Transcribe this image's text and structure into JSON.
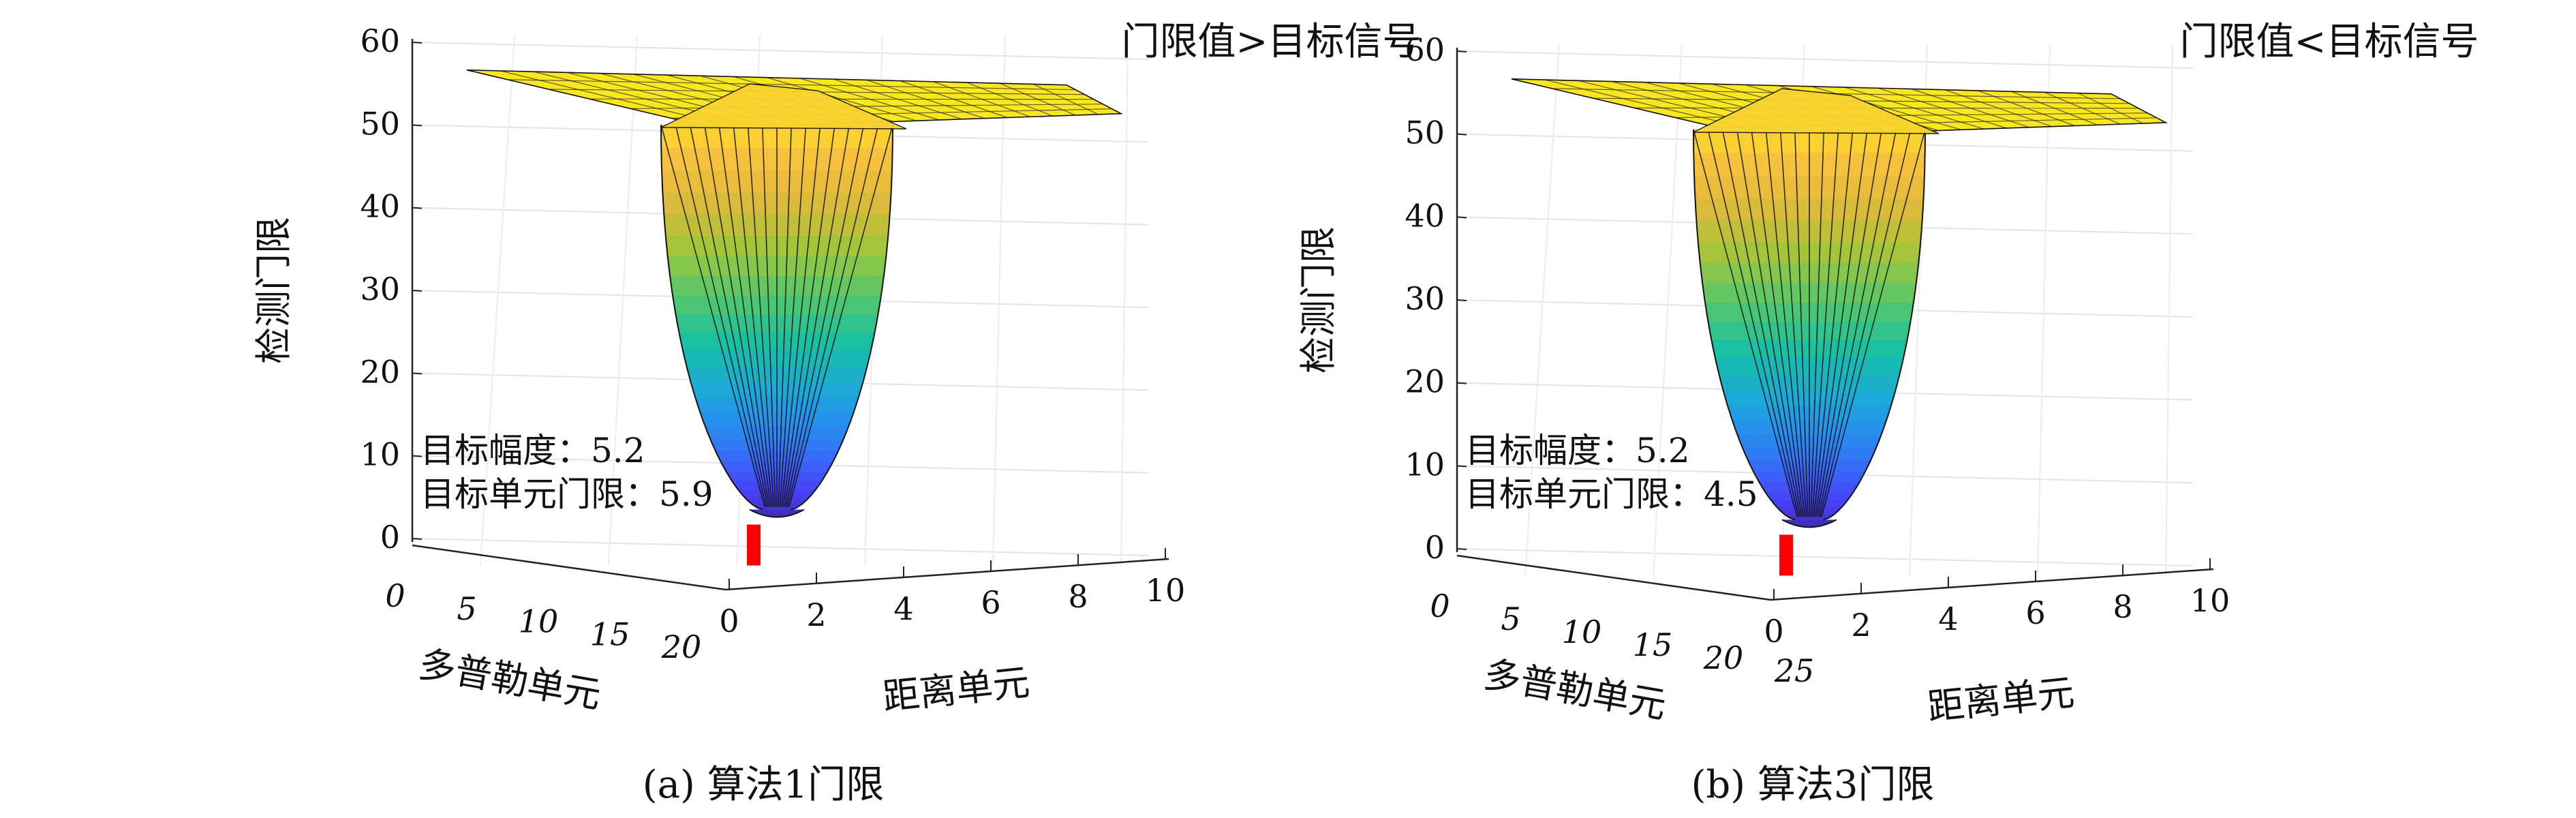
{
  "palette": [
    "#3e26a8",
    "#4743f8",
    "#2f7ef8",
    "#1da8dc",
    "#16bfa6",
    "#55c86a",
    "#a5c43a",
    "#e2b83a",
    "#fbc33c",
    "#f9fb0e"
  ],
  "surface_edge_color": "#111111",
  "target_marker_color": "#ff0000",
  "charts": [
    {
      "caption": "(a) 算法1门限",
      "annotation_top": "门限值>目标信号",
      "annotation_lines": [
        "目标幅度：5.2",
        "目标单元门限：5.9"
      ],
      "chart_data": {
        "type": "surface",
        "xlabel": "距离单元",
        "ylabel": "多普勒单元",
        "zlabel": "检测门限",
        "x_ticks": [
          "0",
          "2",
          "4",
          "6",
          "8",
          "10"
        ],
        "y_ticks": [
          "0",
          "5",
          "10",
          "15",
          "20"
        ],
        "z_ticks": [
          "0",
          "10",
          "20",
          "30",
          "40",
          "50",
          "60"
        ],
        "xlim": [
          0,
          10
        ],
        "ylim": [
          0,
          20
        ],
        "zlim": [
          0,
          60
        ],
        "plateau_value": 55,
        "threshold_min": 3.5,
        "target_cell": {
          "range": 2,
          "doppler": 0
        },
        "target_amplitude": 5.2,
        "target_threshold": 5.9,
        "grid": true
      }
    },
    {
      "caption": "(b) 算法3门限",
      "annotation_top": "门限值<目标信号",
      "annotation_lines": [
        "目标幅度：5.2",
        "目标单元门限：4.5"
      ],
      "chart_data": {
        "type": "surface",
        "xlabel": "距离单元",
        "ylabel": "多普勒单元",
        "zlabel": "检测门限",
        "x_ticks": [
          "0",
          "2",
          "4",
          "6",
          "8",
          "10"
        ],
        "y_ticks": [
          "0",
          "5",
          "10",
          "15",
          "20",
          "25"
        ],
        "z_ticks": [
          "0",
          "10",
          "20",
          "30",
          "40",
          "50",
          "60"
        ],
        "xlim": [
          0,
          10
        ],
        "ylim": [
          0,
          25
        ],
        "zlim": [
          0,
          60
        ],
        "plateau_value": 55,
        "threshold_min": 3.5,
        "target_cell": {
          "range": 2,
          "doppler": 0
        },
        "target_amplitude": 5.2,
        "target_threshold": 4.5,
        "grid": true
      }
    }
  ]
}
